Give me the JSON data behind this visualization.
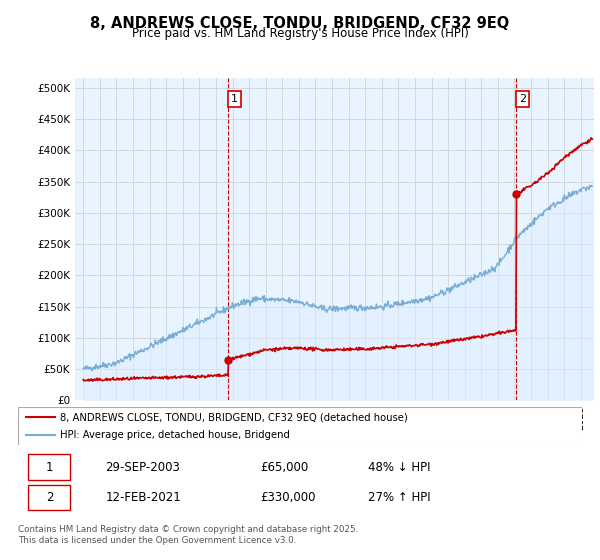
{
  "title": "8, ANDREWS CLOSE, TONDU, BRIDGEND, CF32 9EQ",
  "subtitle": "Price paid vs. HM Land Registry's House Price Index (HPI)",
  "title_fontsize": 10.5,
  "subtitle_fontsize": 8.5,
  "ylabel_ticks": [
    "£0",
    "£50K",
    "£100K",
    "£150K",
    "£200K",
    "£250K",
    "£300K",
    "£350K",
    "£400K",
    "£450K",
    "£500K"
  ],
  "ytick_values": [
    0,
    50000,
    100000,
    150000,
    200000,
    250000,
    300000,
    350000,
    400000,
    450000,
    500000
  ],
  "ylim": [
    0,
    515000
  ],
  "xlim_start": 1994.5,
  "xlim_end": 2025.8,
  "red_line_color": "#cc0000",
  "blue_line_color": "#7aadd4",
  "blue_fill_color": "#ddeeff",
  "transaction1_x": 2003.75,
  "transaction1_y": 65000,
  "transaction2_x": 2021.12,
  "transaction2_y": 330000,
  "annotation1_label": "1",
  "annotation2_label": "2",
  "legend_label_red": "8, ANDREWS CLOSE, TONDU, BRIDGEND, CF32 9EQ (detached house)",
  "legend_label_blue": "HPI: Average price, detached house, Bridgend",
  "table_row1": [
    "1",
    "29-SEP-2003",
    "£65,000",
    "48% ↓ HPI"
  ],
  "table_row2": [
    "2",
    "12-FEB-2021",
    "£330,000",
    "27% ↑ HPI"
  ],
  "footnote": "Contains HM Land Registry data © Crown copyright and database right 2025.\nThis data is licensed under the Open Government Licence v3.0.",
  "bg_color": "#ffffff",
  "grid_color": "#cccccc"
}
